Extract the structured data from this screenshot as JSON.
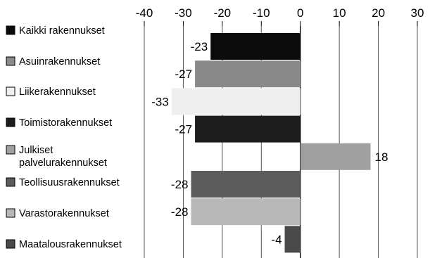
{
  "chart_data": {
    "type": "bar",
    "orientation": "horizontal",
    "categories": [
      [
        "Kaikki rakennukset"
      ],
      [
        "Asuinrakennukset"
      ],
      [
        "Liikerakennukset"
      ],
      [
        "Toimistorakennukset"
      ],
      [
        "Julkiset",
        "palvelurakennukset"
      ],
      [
        "Teollisuusrakennukset"
      ],
      [
        "Varastorakennukset"
      ],
      [
        "Maatalousrakennukset"
      ]
    ],
    "values": [
      -23,
      -27,
      -33,
      -27,
      18,
      -28,
      -28,
      -4
    ],
    "value_labels": [
      "-23",
      "-27",
      "-33",
      "-27",
      "18",
      "-28",
      "-28",
      "-4"
    ],
    "colors": [
      "#0b0b0b",
      "#8a8a8a",
      "#efefef",
      "#1c1c1c",
      "#a0a0a0",
      "#5c5c5c",
      "#b8b8b8",
      "#4a4a4a"
    ],
    "xlim": [
      -40,
      30
    ],
    "xticks": [
      -40,
      -30,
      -20,
      -10,
      0,
      10,
      20,
      30
    ],
    "tick_labels": [
      "-40",
      "-30",
      "-20",
      "-10",
      "0",
      "10",
      "20",
      "30"
    ],
    "axis_position": "top",
    "grid": true,
    "legend": "left"
  }
}
